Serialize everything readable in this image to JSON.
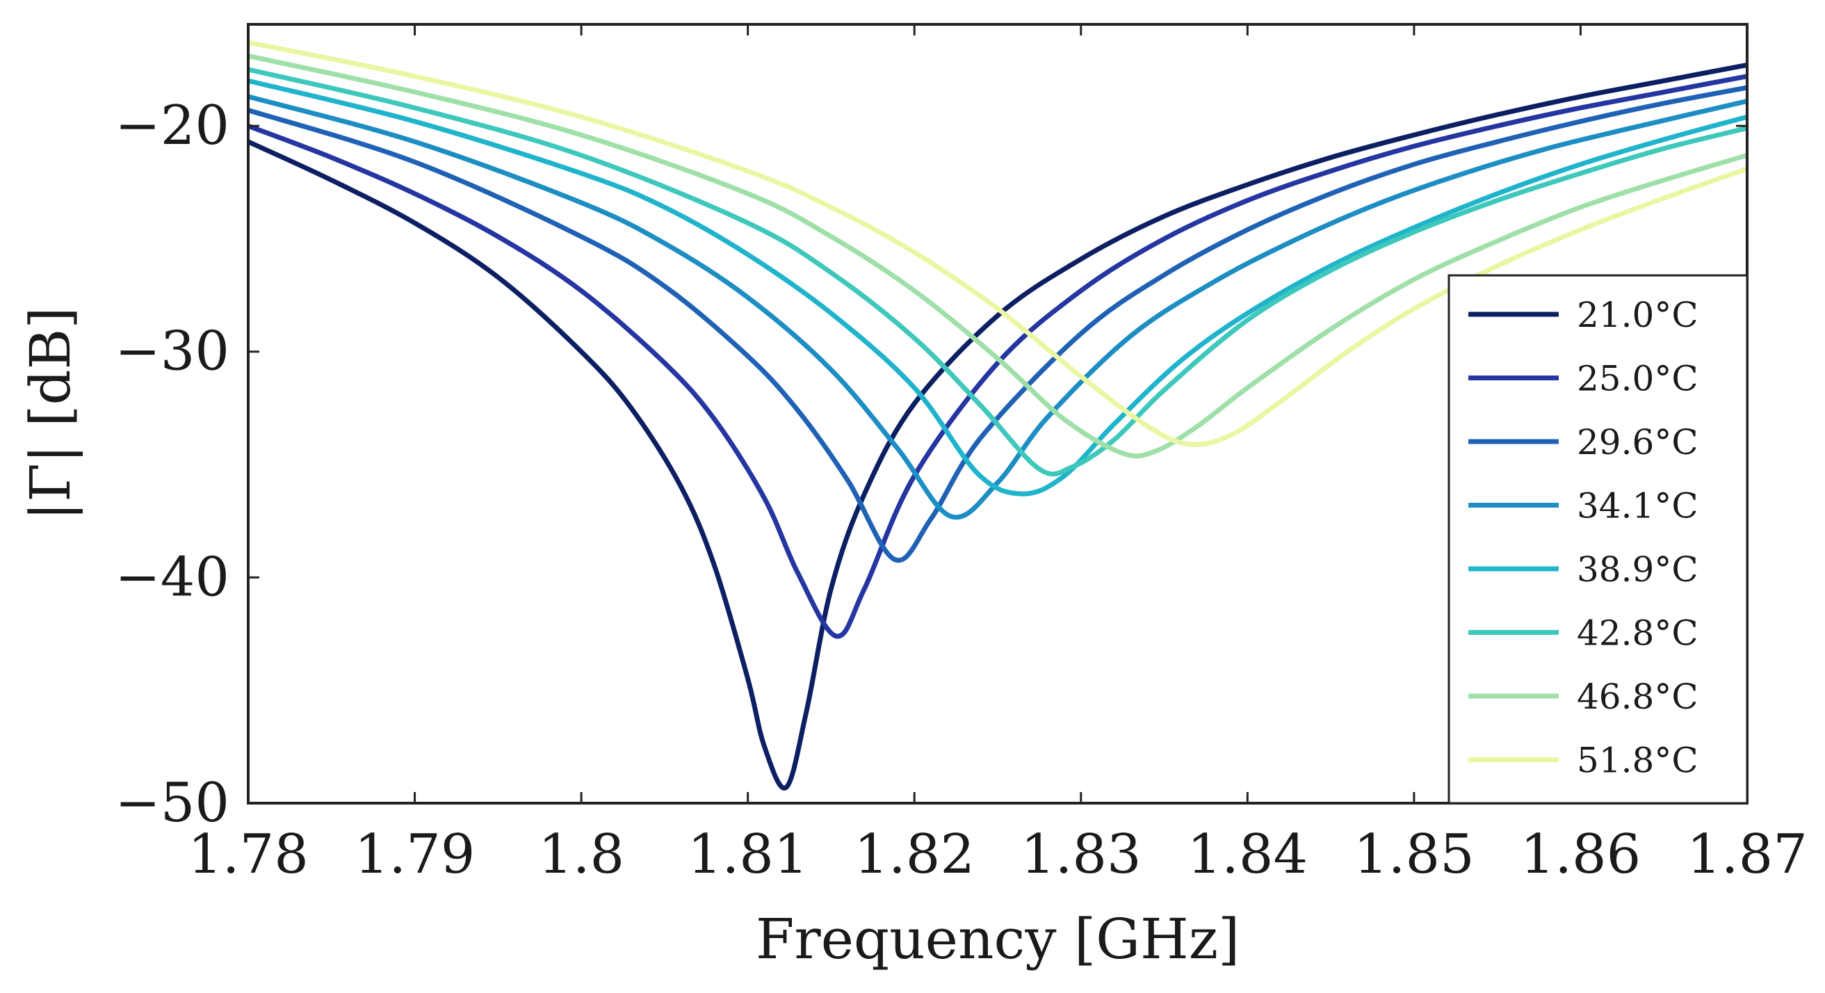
{
  "chart_data": {
    "type": "line",
    "title": "",
    "xlabel": "Frequency [GHz]",
    "ylabel": "|Γ| [dB]",
    "xlim": [
      1.78,
      1.87
    ],
    "ylim": [
      -50,
      -15.5
    ],
    "xticks": [
      1.78,
      1.79,
      1.8,
      1.81,
      1.82,
      1.83,
      1.84,
      1.85,
      1.86,
      1.87
    ],
    "xtick_labels": [
      "1.78",
      "1.79",
      "1.8",
      "1.81",
      "1.82",
      "1.83",
      "1.84",
      "1.85",
      "1.86",
      "1.87"
    ],
    "yticks": [
      -50,
      -40,
      -30,
      -20
    ],
    "ytick_labels": [
      "−50",
      "−40",
      "−30",
      "−20"
    ],
    "grid": false,
    "legend_position": "bottom-right",
    "series": [
      {
        "name": "21.0°C",
        "color": "#0c1f63",
        "x": [
          1.78,
          1.785,
          1.79,
          1.795,
          1.8,
          1.803,
          1.806,
          1.808,
          1.81,
          1.811,
          1.8123,
          1.8135,
          1.815,
          1.817,
          1.82,
          1.825,
          1.83,
          1.835,
          1.84,
          1.845,
          1.85,
          1.855,
          1.86,
          1.865,
          1.87
        ],
        "y": [
          -20.7,
          -22.4,
          -24.3,
          -26.7,
          -30.0,
          -32.5,
          -36.0,
          -39.5,
          -44.5,
          -47.5,
          -49.3,
          -46.0,
          -40.5,
          -36.3,
          -32.3,
          -28.4,
          -25.9,
          -24.0,
          -22.6,
          -21.4,
          -20.4,
          -19.5,
          -18.7,
          -18.0,
          -17.3
        ]
      },
      {
        "name": "25.0°C",
        "color": "#2535a1",
        "x": [
          1.78,
          1.785,
          1.79,
          1.795,
          1.8,
          1.805,
          1.808,
          1.811,
          1.813,
          1.8153,
          1.817,
          1.82,
          1.825,
          1.83,
          1.835,
          1.84,
          1.845,
          1.85,
          1.855,
          1.86,
          1.865,
          1.87
        ],
        "y": [
          -20.0,
          -21.4,
          -23.0,
          -24.9,
          -27.3,
          -30.5,
          -33.0,
          -36.5,
          -39.8,
          -42.6,
          -40.5,
          -35.5,
          -30.5,
          -27.3,
          -25.0,
          -23.3,
          -22.0,
          -20.9,
          -20.0,
          -19.2,
          -18.5,
          -17.8
        ]
      },
      {
        "name": "29.6°C",
        "color": "#1f62b5",
        "x": [
          1.78,
          1.79,
          1.8,
          1.805,
          1.81,
          1.813,
          1.816,
          1.8188,
          1.821,
          1.824,
          1.83,
          1.835,
          1.84,
          1.845,
          1.85,
          1.855,
          1.86,
          1.865,
          1.87
        ],
        "y": [
          -19.3,
          -21.6,
          -24.9,
          -27.1,
          -30.2,
          -32.6,
          -35.7,
          -39.2,
          -37.4,
          -33.8,
          -29.2,
          -26.6,
          -24.6,
          -23.0,
          -21.7,
          -20.7,
          -19.8,
          -19.0,
          -18.3
        ]
      },
      {
        "name": "34.1°C",
        "color": "#1d8ec3",
        "x": [
          1.78,
          1.79,
          1.8,
          1.805,
          1.81,
          1.815,
          1.819,
          1.8222,
          1.825,
          1.828,
          1.833,
          1.838,
          1.843,
          1.848,
          1.853,
          1.858,
          1.863,
          1.87
        ],
        "y": [
          -18.7,
          -20.7,
          -23.4,
          -25.2,
          -27.6,
          -30.8,
          -34.3,
          -37.3,
          -35.8,
          -32.9,
          -29.3,
          -26.9,
          -25.0,
          -23.4,
          -22.1,
          -21.0,
          -20.1,
          -18.9
        ]
      },
      {
        "name": "38.9°C",
        "color": "#20b4cc",
        "x": [
          1.78,
          1.79,
          1.8,
          1.805,
          1.81,
          1.815,
          1.82,
          1.8238,
          1.8265,
          1.829,
          1.832,
          1.836,
          1.84,
          1.845,
          1.85,
          1.855,
          1.86,
          1.865,
          1.87
        ],
        "y": [
          -18.0,
          -19.8,
          -22.1,
          -23.6,
          -25.7,
          -28.3,
          -31.6,
          -35.4,
          -36.3,
          -35.5,
          -33.2,
          -30.4,
          -28.3,
          -26.2,
          -24.5,
          -23.0,
          -21.7,
          -20.6,
          -19.6
        ]
      },
      {
        "name": "42.8°C",
        "color": "#3ec8bc",
        "x": [
          1.78,
          1.79,
          1.8,
          1.81,
          1.815,
          1.82,
          1.824,
          1.8275,
          1.8295,
          1.832,
          1.835,
          1.84,
          1.845,
          1.85,
          1.855,
          1.86,
          1.865,
          1.87
        ],
        "y": [
          -17.5,
          -19.2,
          -21.3,
          -24.3,
          -26.5,
          -29.4,
          -32.4,
          -35.2,
          -35.1,
          -33.9,
          -31.7,
          -28.6,
          -26.4,
          -24.7,
          -23.3,
          -22.1,
          -21.0,
          -20.1
        ]
      },
      {
        "name": "46.8°C",
        "color": "#9fdfa8",
        "x": [
          1.78,
          1.79,
          1.8,
          1.81,
          1.815,
          1.82,
          1.825,
          1.829,
          1.8325,
          1.8345,
          1.837,
          1.84,
          1.845,
          1.85,
          1.855,
          1.86,
          1.865,
          1.87
        ],
        "y": [
          -16.9,
          -18.5,
          -20.4,
          -23.0,
          -24.9,
          -27.3,
          -30.3,
          -33.0,
          -34.5,
          -34.4,
          -33.3,
          -31.6,
          -29.0,
          -26.8,
          -25.1,
          -23.6,
          -22.4,
          -21.3
        ]
      },
      {
        "name": "51.8°C",
        "color": "#e9f6a2",
        "x": [
          1.78,
          1.79,
          1.8,
          1.81,
          1.815,
          1.82,
          1.825,
          1.83,
          1.834,
          1.8365,
          1.839,
          1.842,
          1.846,
          1.85,
          1.855,
          1.86,
          1.865,
          1.87
        ],
        "y": [
          -16.3,
          -17.8,
          -19.6,
          -22.0,
          -23.6,
          -25.6,
          -28.1,
          -31.1,
          -33.3,
          -34.1,
          -33.7,
          -32.2,
          -30.0,
          -28.1,
          -26.2,
          -24.6,
          -23.2,
          -21.9
        ]
      }
    ]
  }
}
